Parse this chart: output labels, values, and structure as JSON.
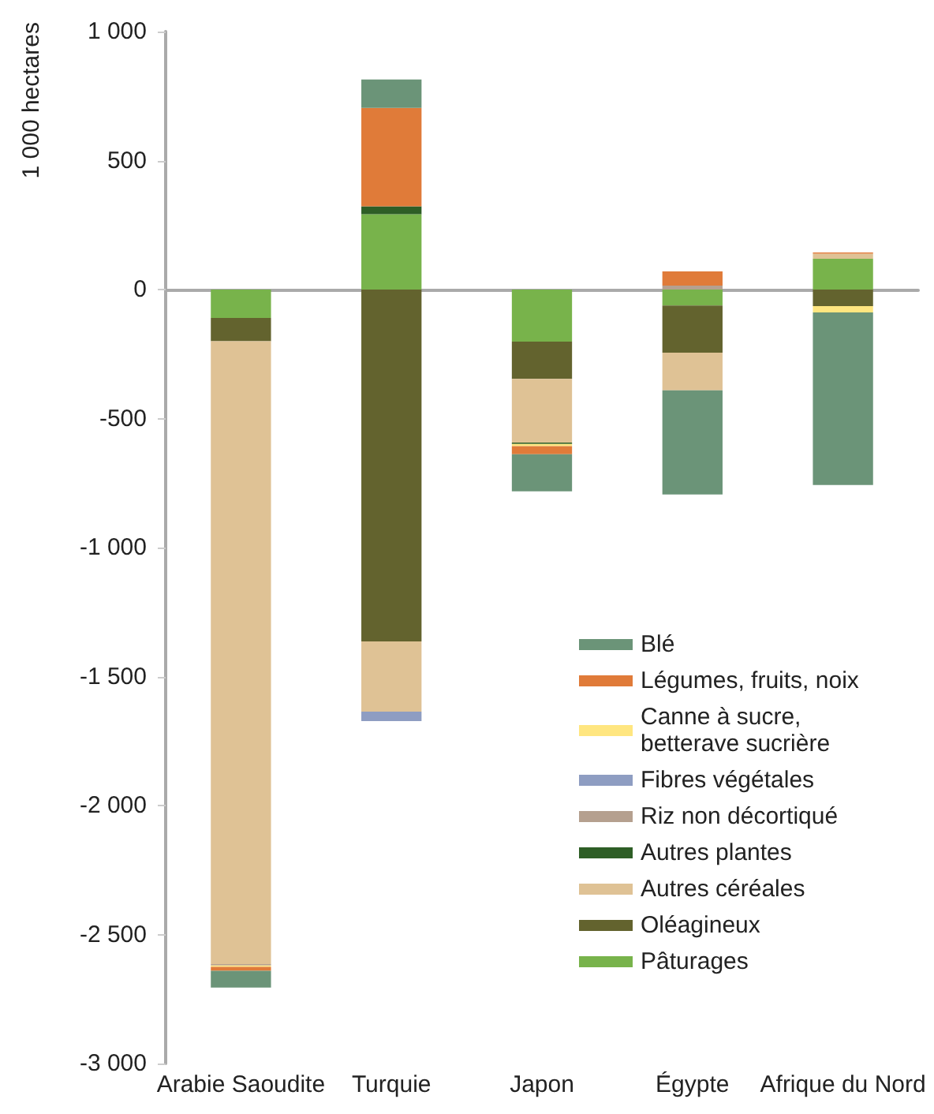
{
  "chart_data": {
    "type": "bar",
    "stacked": true,
    "ylabel": "1 000 hectares",
    "categories": [
      "Arabie Saoudite",
      "Turquie",
      "Japon",
      "Égypte",
      "Afrique du Nord"
    ],
    "series": [
      {
        "name": "Pâturages",
        "color": "#78b34b",
        "values": [
          -110,
          292,
          -202,
          -62,
          119
        ]
      },
      {
        "name": "Oléagineux",
        "color": "#63632e",
        "values": [
          -90,
          -1364,
          -144,
          -183,
          -64
        ]
      },
      {
        "name": "Autres céréales",
        "color": "#dfc295",
        "values": [
          -2415,
          -272,
          -247,
          -146,
          20
        ]
      },
      {
        "name": "Autres plantes",
        "color": "#2e5e26",
        "values": [
          null,
          31,
          -6,
          null,
          null
        ]
      },
      {
        "name": "Riz non décortiqué",
        "color": "#b5a08f",
        "values": [
          -5,
          null,
          null,
          15,
          null
        ]
      },
      {
        "name": "Fibres végétales",
        "color": "#8e9dc2",
        "values": [
          null,
          -37,
          null,
          null,
          null
        ]
      },
      {
        "name": "Canne à sucre, betterave sucrière",
        "color": "#ffe680",
        "values": [
          -5,
          null,
          -8,
          null,
          -25
        ]
      },
      {
        "name": "Légumes, fruits, noix",
        "color": "#e07b39",
        "values": [
          -16,
          381,
          -31,
          55,
          5
        ]
      },
      {
        "name": "Blé",
        "color": "#6b9478",
        "values": [
          -65,
          110,
          -144,
          -403,
          -669
        ]
      }
    ],
    "ylim": [
      -3000,
      1000
    ],
    "yticks": [
      {
        "value": -3000,
        "label": "-3 000"
      },
      {
        "value": -2500,
        "label": "-2 500"
      },
      {
        "value": -2000,
        "label": "-2 000"
      },
      {
        "value": -1500,
        "label": "-1 500"
      },
      {
        "value": -1000,
        "label": "-1 000"
      },
      -500,
      0,
      500,
      {
        "value": 1000,
        "label": "1 000"
      }
    ],
    "legend": "bottom right"
  }
}
